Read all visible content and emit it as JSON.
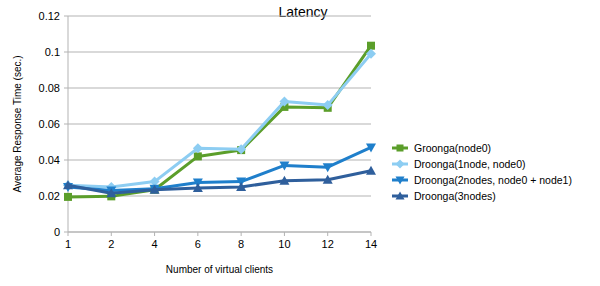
{
  "chart_data": {
    "type": "line",
    "title": "Latency",
    "x_label": "Number of virtual clients",
    "y_label": "Average Response Time (sec.)",
    "categories": [
      1,
      2,
      4,
      6,
      8,
      10,
      12,
      14
    ],
    "ylim": [
      0,
      0.12
    ],
    "yticks": [
      0,
      0.02,
      0.04,
      0.06,
      0.08,
      0.1,
      0.12
    ],
    "grid": true,
    "legend": "right",
    "series": [
      {
        "name": "Groonga(node0)",
        "color": "#5b9e2a",
        "marker": "square",
        "values": [
          0.0195,
          0.0198,
          0.0235,
          0.042,
          0.0455,
          0.0695,
          0.069,
          0.1035
        ]
      },
      {
        "name": "Droonga(1node, node0)",
        "color": "#8dcdf2",
        "marker": "diamond",
        "values": [
          0.026,
          0.025,
          0.028,
          0.0465,
          0.046,
          0.0725,
          0.0705,
          0.099
        ]
      },
      {
        "name": "Droonga(2nodes, node0 + node1)",
        "color": "#1f7fcb",
        "marker": "triangle-down",
        "values": [
          0.025,
          0.023,
          0.024,
          0.0275,
          0.028,
          0.037,
          0.036,
          0.047
        ]
      },
      {
        "name": "Droonga(3nodes)",
        "color": "#2f5f9c",
        "marker": "triangle-up",
        "values": [
          0.026,
          0.0215,
          0.0235,
          0.0245,
          0.025,
          0.0285,
          0.029,
          0.034
        ]
      }
    ]
  }
}
